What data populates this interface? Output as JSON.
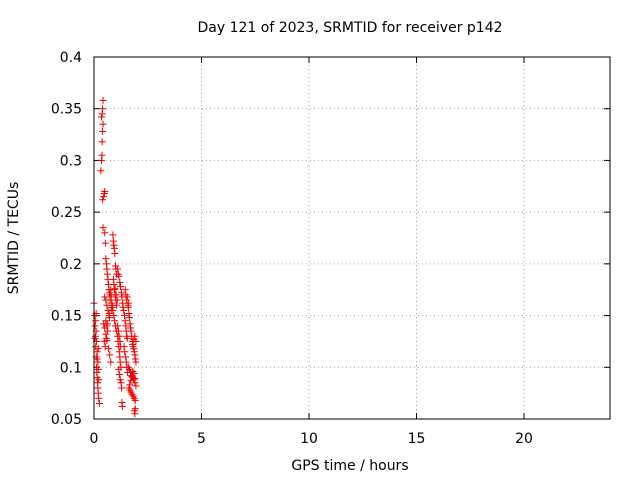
{
  "chart_data": {
    "type": "scatter",
    "title": "Day 121 of 2023, SRMTID for receiver p142",
    "xlabel": "GPS time / hours",
    "ylabel": "SRMTID / TECUs",
    "xlim": [
      0,
      24
    ],
    "ylim": [
      0.05,
      0.4
    ],
    "xticks": [
      0,
      5,
      10,
      15,
      20
    ],
    "xtick_labels": [
      "0",
      "5",
      "10",
      "15",
      "20"
    ],
    "yticks": [
      0.05,
      0.1,
      0.15,
      0.2,
      0.25,
      0.3,
      0.35,
      0.4
    ],
    "ytick_labels": [
      "0.05",
      "0.1",
      "0.15",
      "0.2",
      "0.25",
      "0.3",
      "0.35",
      "0.4"
    ],
    "grid": true,
    "marker": "+",
    "color": "#ee0000",
    "series": [
      {
        "name": "SRMTID",
        "x": [
          0.0,
          0.03,
          0.05,
          0.07,
          0.08,
          0.1,
          0.12,
          0.13,
          0.15,
          0.17,
          0.18,
          0.2,
          0.22,
          0.25,
          0.08,
          0.1,
          0.12,
          0.15,
          0.18,
          0.2,
          0.22,
          0.2,
          0.1,
          0.05,
          0.15,
          0.32,
          0.35,
          0.37,
          0.38,
          0.4,
          0.42,
          0.35,
          0.38,
          0.4,
          0.42,
          0.45,
          0.48,
          0.5,
          0.4,
          0.42,
          0.5,
          0.53,
          0.55,
          0.58,
          0.6,
          0.62,
          0.65,
          0.68,
          0.7,
          0.72,
          0.5,
          0.55,
          0.6,
          0.65,
          0.7,
          0.75,
          0.78,
          0.8,
          0.82,
          0.85,
          0.55,
          0.6,
          0.62,
          0.7,
          0.72,
          0.48,
          0.52,
          0.58,
          0.63,
          0.75,
          0.8,
          0.45,
          0.5,
          0.55,
          0.6,
          0.68,
          0.73,
          0.78,
          0.88,
          0.9,
          0.92,
          0.95,
          0.97,
          1.0,
          1.02,
          1.05,
          0.9,
          0.93,
          0.98,
          1.03,
          1.08,
          0.85,
          0.88,
          0.92,
          0.96,
          1.0,
          1.04,
          1.1,
          1.12,
          1.15,
          1.18,
          1.2,
          1.22,
          1.25,
          1.1,
          1.13,
          1.16,
          1.2,
          1.23,
          1.27,
          1.3,
          1.33,
          1.35,
          1.15,
          1.18,
          1.22,
          1.26,
          1.28,
          1.3,
          1.32,
          1.1,
          1.14,
          1.17,
          1.21,
          1.24,
          0.95,
          0.98,
          1.02,
          1.05,
          1.38,
          1.42,
          1.45,
          1.48,
          1.5,
          1.52,
          1.55,
          1.4,
          1.43,
          1.47,
          1.5,
          1.53,
          1.56,
          1.45,
          1.48,
          1.52,
          1.58,
          1.6,
          1.62,
          1.65,
          1.68,
          1.7,
          1.72,
          1.75,
          1.78,
          1.8,
          1.82,
          1.85,
          1.88,
          1.9,
          1.92,
          1.95,
          1.6,
          1.65,
          1.7,
          1.75,
          1.8,
          1.85,
          1.9,
          1.95,
          1.62,
          1.67,
          1.72,
          1.77,
          1.82,
          1.87,
          1.92,
          1.66,
          1.71,
          1.76,
          1.81,
          1.86,
          1.91,
          1.55,
          1.6,
          1.88,
          1.9,
          1.92,
          1.95,
          1.9,
          1.85
        ],
        "y": [
          0.162,
          0.15,
          0.14,
          0.13,
          0.12,
          0.11,
          0.1,
          0.095,
          0.09,
          0.085,
          0.08,
          0.075,
          0.07,
          0.065,
          0.145,
          0.135,
          0.125,
          0.115,
          0.105,
          0.098,
          0.088,
          0.118,
          0.152,
          0.128,
          0.108,
          0.29,
          0.3,
          0.305,
          0.318,
          0.328,
          0.335,
          0.342,
          0.345,
          0.35,
          0.358,
          0.265,
          0.268,
          0.27,
          0.262,
          0.235,
          0.23,
          0.22,
          0.205,
          0.2,
          0.195,
          0.19,
          0.185,
          0.18,
          0.175,
          0.172,
          0.168,
          0.165,
          0.16,
          0.155,
          0.152,
          0.17,
          0.175,
          0.168,
          0.162,
          0.158,
          0.145,
          0.14,
          0.142,
          0.15,
          0.148,
          0.125,
          0.12,
          0.128,
          0.135,
          0.165,
          0.155,
          0.142,
          0.138,
          0.132,
          0.126,
          0.118,
          0.112,
          0.105,
          0.228,
          0.222,
          0.218,
          0.215,
          0.21,
          0.198,
          0.195,
          0.19,
          0.185,
          0.18,
          0.176,
          0.17,
          0.165,
          0.16,
          0.155,
          0.15,
          0.145,
          0.14,
          0.135,
          0.13,
          0.125,
          0.12,
          0.115,
          0.11,
          0.105,
          0.1,
          0.195,
          0.19,
          0.188,
          0.182,
          0.178,
          0.172,
          0.168,
          0.162,
          0.158,
          0.098,
          0.093,
          0.088,
          0.085,
          0.08,
          0.066,
          0.062,
          0.14,
          0.135,
          0.13,
          0.125,
          0.12,
          0.175,
          0.17,
          0.165,
          0.16,
          0.155,
          0.15,
          0.145,
          0.14,
          0.135,
          0.13,
          0.128,
          0.12,
          0.115,
          0.11,
          0.105,
          0.1,
          0.095,
          0.175,
          0.17,
          0.165,
          0.16,
          0.158,
          0.152,
          0.148,
          0.142,
          0.138,
          0.135,
          0.13,
          0.125,
          0.122,
          0.12,
          0.118,
          0.115,
          0.112,
          0.108,
          0.105,
          0.1,
          0.098,
          0.095,
          0.092,
          0.09,
          0.088,
          0.085,
          0.082,
          0.08,
          0.078,
          0.076,
          0.074,
          0.072,
          0.07,
          0.068,
          0.083,
          0.087,
          0.091,
          0.096,
          0.094,
          0.089,
          0.168,
          0.162,
          0.058,
          0.055,
          0.06,
          0.125,
          0.13,
          0.127
        ]
      }
    ]
  }
}
